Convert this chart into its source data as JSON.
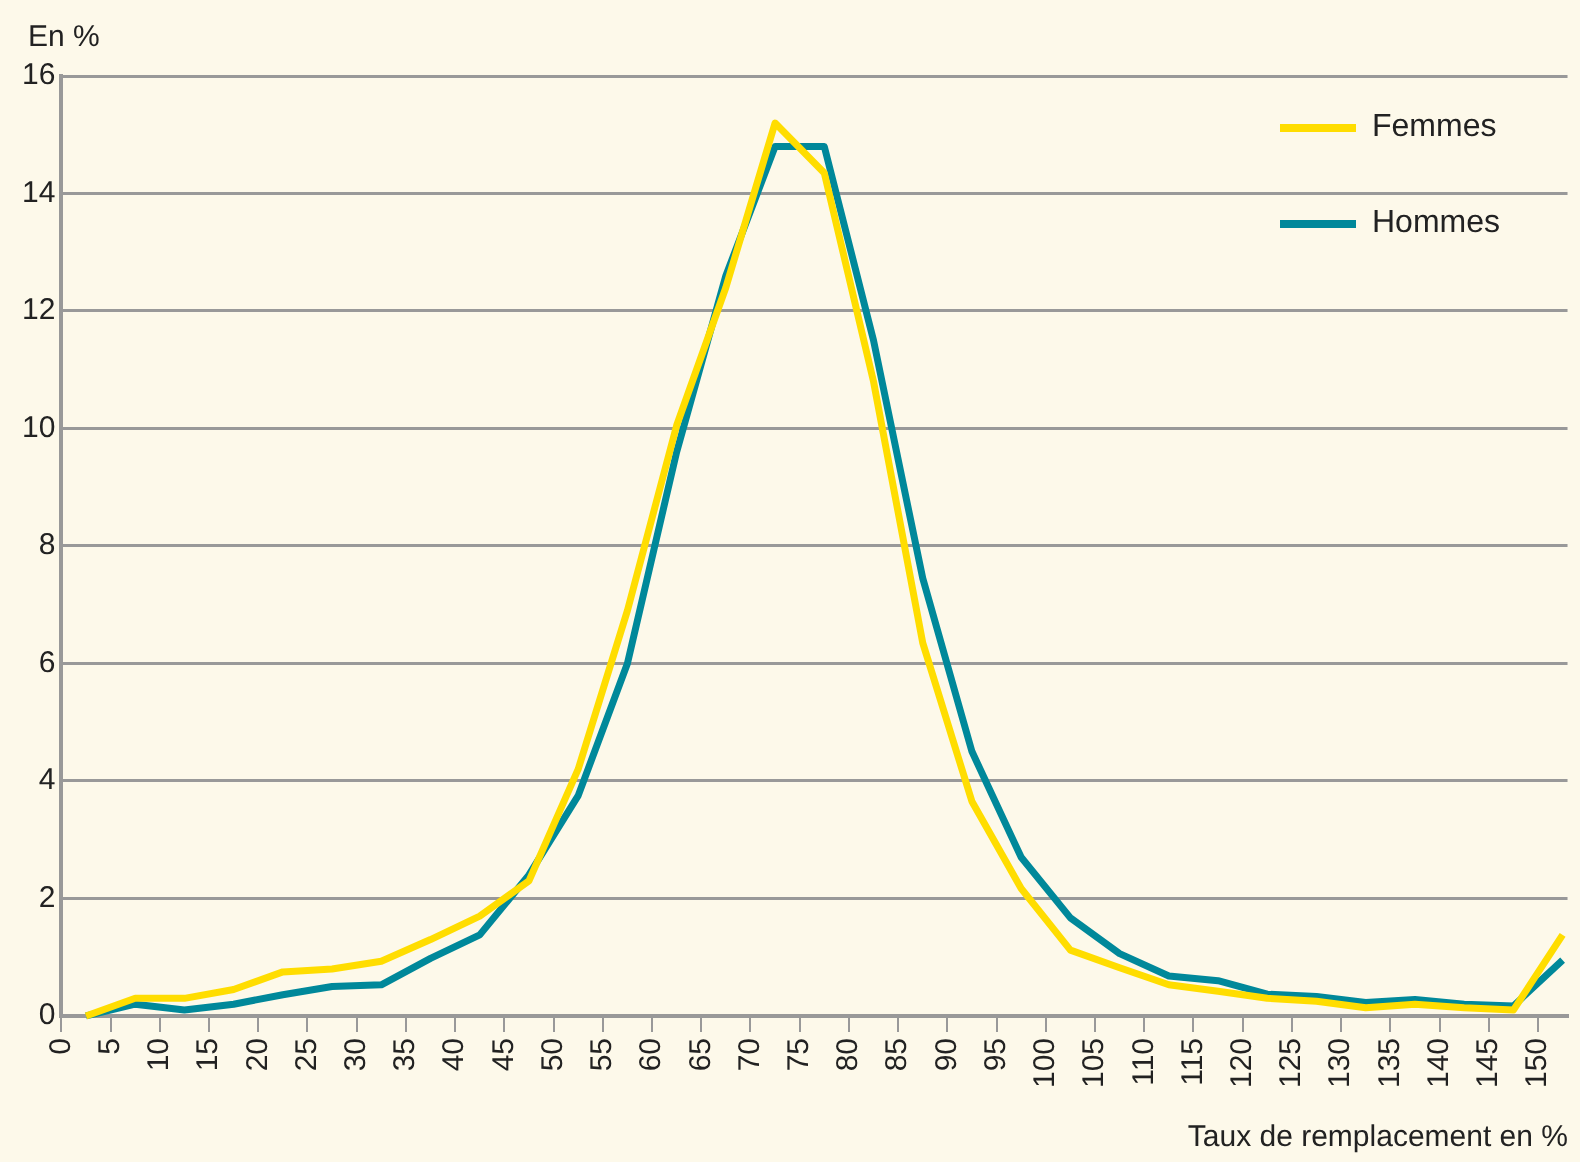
{
  "chart_data": {
    "type": "line",
    "xlabel": "Taux de remplacement en %",
    "ylabel": "En %",
    "x": [
      2.5,
      7.5,
      12.5,
      17.5,
      22.5,
      27.5,
      32.5,
      37.5,
      42.5,
      47.5,
      52.5,
      57.5,
      62.5,
      67.5,
      72.5,
      77.5,
      82.5,
      87.5,
      92.5,
      97.5,
      102.5,
      107.5,
      112.5,
      117.5,
      122.5,
      127.5,
      132.5,
      137.5,
      142.5,
      147.5,
      152.5
    ],
    "series": [
      {
        "name": "Femmes",
        "color": "#ffdd00",
        "values": [
          0,
          0.3,
          0.3,
          0.45,
          0.75,
          0.8,
          0.93,
          1.3,
          1.7,
          2.3,
          4.2,
          6.9,
          10.05,
          12.4,
          15.2,
          14.35,
          10.8,
          6.35,
          3.65,
          2.17,
          1.12,
          0.82,
          0.53,
          0.42,
          0.3,
          0.25,
          0.14,
          0.2,
          0.14,
          0.1,
          1.38
        ]
      },
      {
        "name": "Hommes",
        "color": "#00889a",
        "values": [
          0,
          0.2,
          0.1,
          0.2,
          0.36,
          0.5,
          0.53,
          0.98,
          1.38,
          2.4,
          3.75,
          6.0,
          9.6,
          12.6,
          14.8,
          14.8,
          11.5,
          7.45,
          4.5,
          2.7,
          1.67,
          1.06,
          0.68,
          0.6,
          0.37,
          0.33,
          0.23,
          0.28,
          0.2,
          0.17,
          0.95
        ]
      }
    ],
    "xlim": [
      0,
      153
    ],
    "xticks": [
      0,
      5,
      10,
      15,
      20,
      25,
      30,
      35,
      40,
      45,
      50,
      55,
      60,
      65,
      70,
      75,
      80,
      85,
      90,
      95,
      100,
      105,
      110,
      115,
      120,
      125,
      130,
      135,
      140,
      145,
      150
    ],
    "ylim": [
      0,
      16
    ],
    "yticks": [
      0,
      2,
      4,
      6,
      8,
      10,
      12,
      14,
      16
    ],
    "grid": "y",
    "legend": "top right",
    "marker": "none",
    "line_style": "solid"
  }
}
